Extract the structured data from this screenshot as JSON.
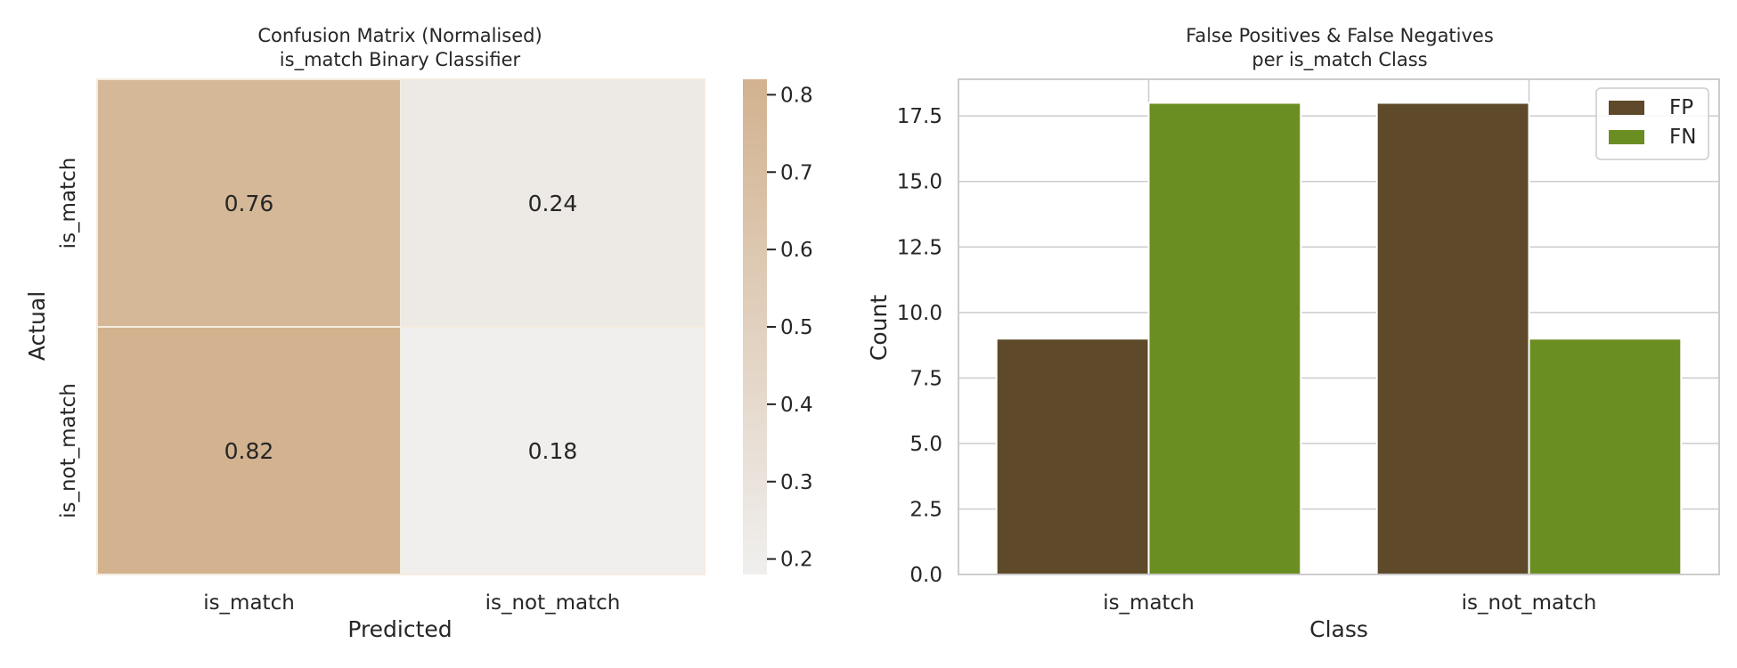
{
  "chart_data": [
    {
      "type": "heatmap",
      "title": "Confusion Matrix (Normalised)",
      "subtitle": "is_match Binary Classifier",
      "xlabel": "Predicted",
      "ylabel": "Actual",
      "x_categories": [
        "is_match",
        "is_not_match"
      ],
      "y_categories": [
        "is_match",
        "is_not_match"
      ],
      "values": [
        [
          0.76,
          0.24
        ],
        [
          0.82,
          0.18
        ]
      ],
      "cell_labels": [
        [
          "0.76",
          "0.24"
        ],
        [
          "0.82",
          "0.18"
        ]
      ],
      "colorbar": {
        "range": [
          0.18,
          0.82
        ],
        "ticks": [
          0.2,
          0.3,
          0.4,
          0.5,
          0.6,
          0.7,
          0.8
        ],
        "tick_labels": [
          "0.2",
          "0.3",
          "0.4",
          "0.5",
          "0.6",
          "0.7",
          "0.8"
        ],
        "color_low": "#f0efee",
        "color_high": "#d2b28f"
      }
    },
    {
      "type": "bar",
      "title": "False Positives & False Negatives",
      "subtitle": "per is_match Class",
      "xlabel": "Class",
      "ylabel": "Count",
      "categories": [
        "is_match",
        "is_not_match"
      ],
      "series": [
        {
          "name": "FP",
          "values": [
            9,
            18
          ],
          "color": "#5e4a2a"
        },
        {
          "name": "FN",
          "values": [
            18,
            9
          ],
          "color": "#6b8e23"
        }
      ],
      "ylim": [
        0,
        18.9
      ],
      "yticks": [
        0.0,
        2.5,
        5.0,
        7.5,
        10.0,
        12.5,
        15.0,
        17.5
      ],
      "ytick_labels": [
        "0.0",
        "2.5",
        "5.0",
        "7.5",
        "10.0",
        "12.5",
        "15.0",
        "17.5"
      ],
      "grid": true,
      "legend": "top-right"
    }
  ]
}
